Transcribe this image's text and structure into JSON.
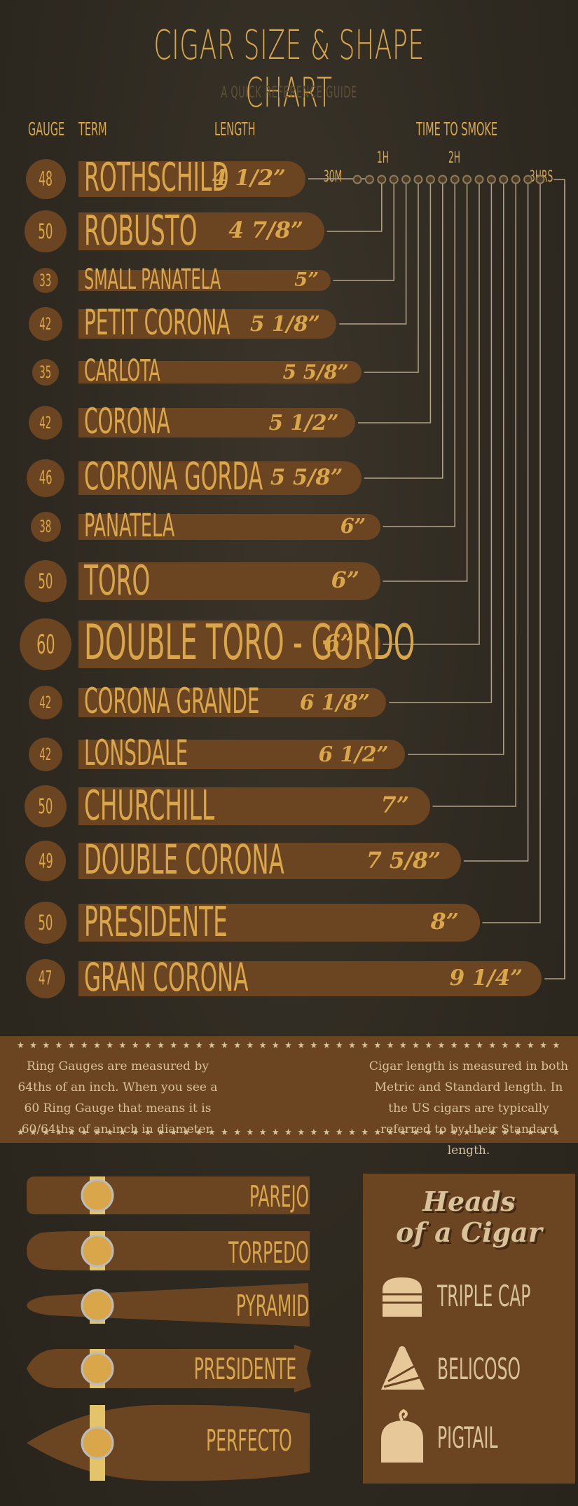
{
  "header": {
    "title": "CIGAR SIZE & SHAPE CHART",
    "subtitle": "A QUICK REFERENCE GUIDE",
    "col_gauge": "GAUGE",
    "col_term": "TERM",
    "col_length": "LENGTH",
    "col_time": "TIME TO SMOKE"
  },
  "time_axis": {
    "labels": [
      "30M",
      "1H",
      "2H",
      "3HRS"
    ],
    "dot_count": 13
  },
  "chart_data": {
    "type": "bar",
    "categories": [
      "ROTHSCHILD",
      "ROBUSTO",
      "SMALL PANATELA",
      "PETIT CORONA",
      "CARLOTA",
      "CORONA",
      "CORONA GORDA",
      "PANATELA",
      "TORO",
      "DOUBLE TORO - GORDO",
      "CORONA GRANDE",
      "LONSDALE",
      "CHURCHILL",
      "DOUBLE CORONA",
      "PRESIDENTE",
      "GRAN CORONA"
    ],
    "gauges": [
      "48",
      "50",
      "33",
      "42",
      "35",
      "42",
      "46",
      "38",
      "50",
      "60",
      "42",
      "42",
      "50",
      "49",
      "50",
      "47"
    ],
    "length_labels": [
      "4 1/2”",
      "4 7/8”",
      "5”",
      "5 1/8”",
      "5 5/8”",
      "5 1/2”",
      "5 5/8”",
      "6”",
      "6”",
      "6”",
      "6 1/8”",
      "6 1/2”",
      "7”",
      "7 5/8”",
      "8”",
      "9 1/4”"
    ],
    "values": [
      4.5,
      4.875,
      5,
      5.125,
      5.625,
      5.5,
      5.625,
      6,
      6,
      6,
      6.125,
      6.5,
      7,
      7.625,
      8,
      9.25
    ],
    "ring_gauge_values": [
      48,
      50,
      33,
      42,
      35,
      42,
      46,
      38,
      50,
      60,
      42,
      42,
      50,
      49,
      50,
      47
    ],
    "smoke_time_dot": [
      1,
      2,
      3,
      4,
      5,
      6,
      7,
      8,
      9,
      10,
      11,
      12,
      13,
      14,
      15,
      16
    ]
  },
  "info": {
    "left_text": "Ring Gauges are measured by 64ths of an inch. When you see a 60 Ring Gauge that means it is 60/64ths of an inch in diameter.",
    "right_text": "Cigar length is measured in both Metric and Standard length. In the US cigars are typically referred to by their Standard length."
  },
  "shapes": {
    "items": [
      "PAREJO",
      "TORPEDO",
      "PYRAMID",
      "PRESIDENTE",
      "PERFECTO"
    ]
  },
  "heads": {
    "title_line1": "Heads",
    "title_line2": "of a Cigar",
    "items": [
      "TRIPLE CAP",
      "BELICOSO",
      "PIGTAIL"
    ]
  },
  "colors": {
    "background": "#2f2a22",
    "bar": "#6b4422",
    "gold": "#d9a74a",
    "cream": "#d8c29a"
  }
}
